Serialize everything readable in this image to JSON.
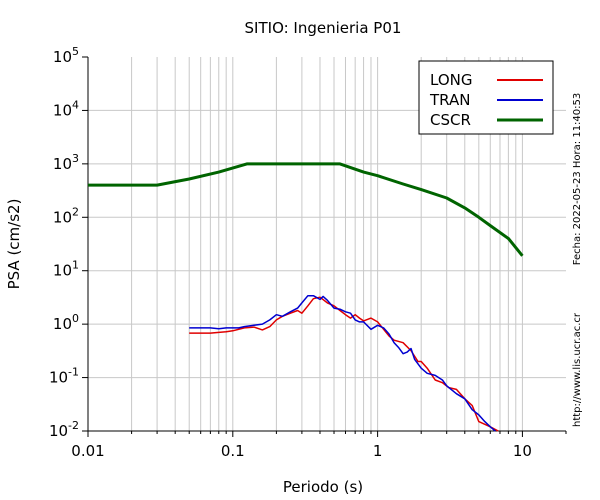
{
  "chart_data": {
    "type": "line",
    "title": "SITIO: Ingenieria P01",
    "xlabel": "Periodo (s)",
    "ylabel": "PSA (cm/s2)",
    "x_scale": "log",
    "y_scale": "log",
    "xlim": [
      0.01,
      20
    ],
    "ylim": [
      0.01,
      100000
    ],
    "grid": true,
    "legend_position": "top-right",
    "x_ticks": [
      {
        "value": 0.01,
        "label": "0.01"
      },
      {
        "value": 0.1,
        "label": "0.1"
      },
      {
        "value": 1,
        "label": "1"
      },
      {
        "value": 10,
        "label": "10"
      }
    ],
    "y_ticks": [
      {
        "value": 0.01,
        "base": "10",
        "exp": "-2"
      },
      {
        "value": 0.1,
        "base": "10",
        "exp": "-1"
      },
      {
        "value": 1,
        "base": "10",
        "exp": "0"
      },
      {
        "value": 10,
        "base": "10",
        "exp": "1"
      },
      {
        "value": 100,
        "base": "10",
        "exp": "2"
      },
      {
        "value": 1000,
        "base": "10",
        "exp": "3"
      },
      {
        "value": 10000,
        "base": "10",
        "exp": "4"
      },
      {
        "value": 100000,
        "base": "10",
        "exp": "5"
      }
    ],
    "series": [
      {
        "name": "LONG",
        "color": "#e00000",
        "points": [
          [
            0.05,
            0.68
          ],
          [
            0.06,
            0.68
          ],
          [
            0.07,
            0.68
          ],
          [
            0.08,
            0.7
          ],
          [
            0.09,
            0.72
          ],
          [
            0.1,
            0.75
          ],
          [
            0.12,
            0.85
          ],
          [
            0.14,
            0.88
          ],
          [
            0.16,
            0.78
          ],
          [
            0.18,
            0.9
          ],
          [
            0.2,
            1.2
          ],
          [
            0.22,
            1.4
          ],
          [
            0.25,
            1.6
          ],
          [
            0.28,
            1.8
          ],
          [
            0.3,
            1.6
          ],
          [
            0.33,
            2.2
          ],
          [
            0.36,
            3.0
          ],
          [
            0.4,
            3.2
          ],
          [
            0.45,
            2.5
          ],
          [
            0.5,
            2.2
          ],
          [
            0.55,
            1.8
          ],
          [
            0.6,
            1.5
          ],
          [
            0.65,
            1.3
          ],
          [
            0.7,
            1.5
          ],
          [
            0.75,
            1.3
          ],
          [
            0.8,
            1.15
          ],
          [
            0.9,
            1.3
          ],
          [
            1.0,
            1.1
          ],
          [
            1.1,
            0.8
          ],
          [
            1.2,
            0.6
          ],
          [
            1.3,
            0.5
          ],
          [
            1.5,
            0.45
          ],
          [
            1.7,
            0.32
          ],
          [
            1.9,
            0.2
          ],
          [
            2.0,
            0.2
          ],
          [
            2.2,
            0.15
          ],
          [
            2.5,
            0.09
          ],
          [
            2.8,
            0.08
          ],
          [
            3.1,
            0.065
          ],
          [
            3.5,
            0.06
          ],
          [
            4.0,
            0.04
          ],
          [
            4.5,
            0.03
          ],
          [
            5.0,
            0.015
          ],
          [
            6.0,
            0.012
          ],
          [
            6.8,
            0.01
          ]
        ]
      },
      {
        "name": "TRAN",
        "color": "#0000d0",
        "points": [
          [
            0.05,
            0.85
          ],
          [
            0.06,
            0.85
          ],
          [
            0.07,
            0.85
          ],
          [
            0.08,
            0.82
          ],
          [
            0.09,
            0.85
          ],
          [
            0.1,
            0.85
          ],
          [
            0.11,
            0.85
          ],
          [
            0.12,
            0.9
          ],
          [
            0.14,
            0.95
          ],
          [
            0.16,
            1.0
          ],
          [
            0.18,
            1.2
          ],
          [
            0.2,
            1.5
          ],
          [
            0.22,
            1.4
          ],
          [
            0.25,
            1.7
          ],
          [
            0.28,
            2.0
          ],
          [
            0.3,
            2.5
          ],
          [
            0.33,
            3.4
          ],
          [
            0.36,
            3.4
          ],
          [
            0.4,
            2.9
          ],
          [
            0.42,
            3.3
          ],
          [
            0.45,
            2.8
          ],
          [
            0.5,
            2.0
          ],
          [
            0.55,
            1.9
          ],
          [
            0.6,
            1.7
          ],
          [
            0.65,
            1.6
          ],
          [
            0.7,
            1.2
          ],
          [
            0.75,
            1.1
          ],
          [
            0.8,
            1.1
          ],
          [
            0.9,
            0.8
          ],
          [
            1.0,
            0.95
          ],
          [
            1.1,
            0.85
          ],
          [
            1.2,
            0.65
          ],
          [
            1.3,
            0.45
          ],
          [
            1.4,
            0.36
          ],
          [
            1.5,
            0.28
          ],
          [
            1.6,
            0.3
          ],
          [
            1.7,
            0.35
          ],
          [
            1.8,
            0.22
          ],
          [
            2.0,
            0.15
          ],
          [
            2.2,
            0.12
          ],
          [
            2.5,
            0.11
          ],
          [
            2.8,
            0.09
          ],
          [
            3.0,
            0.07
          ],
          [
            3.5,
            0.05
          ],
          [
            4.0,
            0.04
          ],
          [
            4.5,
            0.025
          ],
          [
            5.0,
            0.02
          ],
          [
            5.5,
            0.015
          ],
          [
            6.0,
            0.012
          ],
          [
            6.5,
            0.01
          ]
        ]
      },
      {
        "name": "CSCR",
        "color": "#006400",
        "points": [
          [
            0.01,
            400
          ],
          [
            0.03,
            400
          ],
          [
            0.05,
            520
          ],
          [
            0.08,
            700
          ],
          [
            0.125,
            1000
          ],
          [
            0.2,
            1000
          ],
          [
            0.3,
            1000
          ],
          [
            0.55,
            1000
          ],
          [
            0.8,
            700
          ],
          [
            1.0,
            600
          ],
          [
            1.5,
            420
          ],
          [
            2.0,
            330
          ],
          [
            3.0,
            230
          ],
          [
            4.0,
            150
          ],
          [
            5.0,
            100
          ],
          [
            6.0,
            70
          ],
          [
            8.0,
            40
          ],
          [
            10.0,
            19
          ]
        ]
      }
    ],
    "side_texts": {
      "date": "Fecha: 2022-05-23 Hora: 11:40:53",
      "url": "http://www.lis.ucr.ac.cr"
    }
  }
}
